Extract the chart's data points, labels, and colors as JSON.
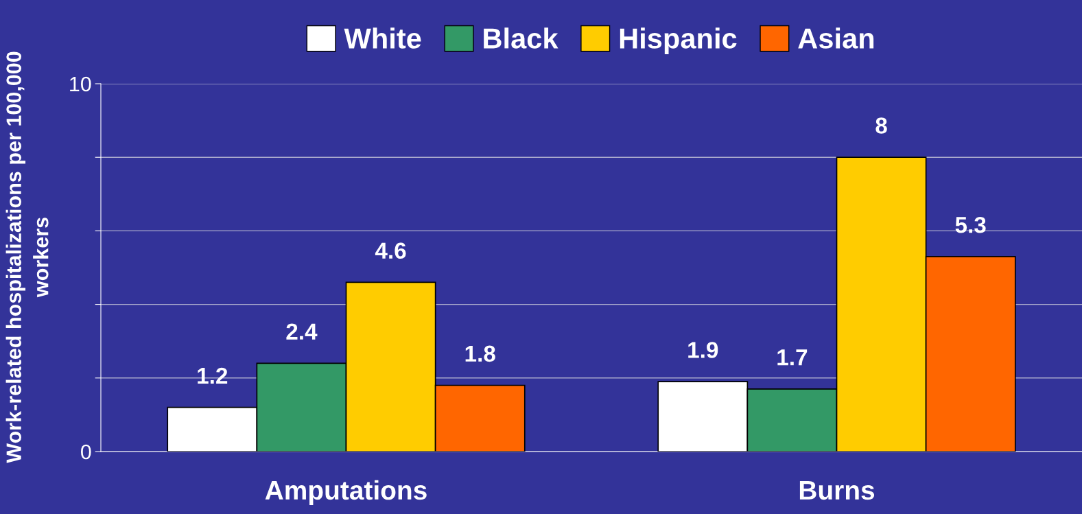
{
  "chart_data": {
    "type": "bar",
    "ylabel": "Work-related hospitalizations per 100,000\nworkers",
    "categories": [
      "Amputations",
      "Burns"
    ],
    "series": [
      {
        "name": "White",
        "color": "#ffffff",
        "values": [
          1.2,
          1.9
        ]
      },
      {
        "name": "Black",
        "color": "#339966",
        "values": [
          2.4,
          1.7
        ]
      },
      {
        "name": "Hispanic",
        "color": "#ffcc00",
        "values": [
          4.6,
          8
        ]
      },
      {
        "name": "Asian",
        "color": "#ff6600",
        "values": [
          1.8,
          5.3
        ]
      }
    ],
    "ylim": [
      0,
      10
    ],
    "yticks": [
      0,
      {
        "value": 2,
        "label": null
      },
      {
        "value": 4,
        "label": null
      },
      {
        "value": 6,
        "label": null
      },
      {
        "value": 8,
        "label": null
      },
      10
    ],
    "grid": "y",
    "legend": "top",
    "data_labels": true
  }
}
